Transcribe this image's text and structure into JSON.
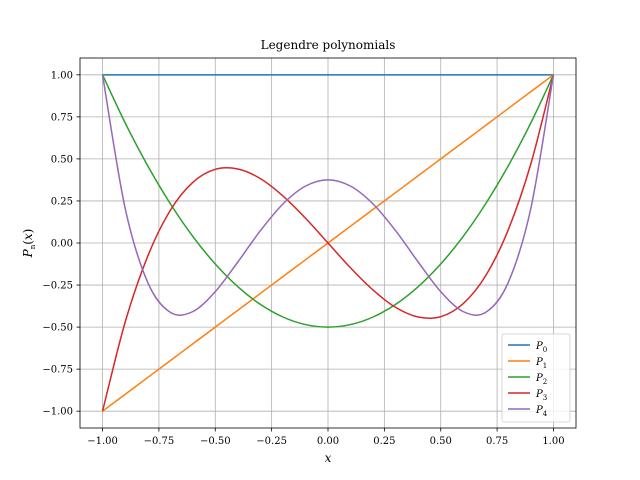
{
  "chart_data": {
    "type": "line",
    "title": "Legendre polynomials",
    "xlabel": "x",
    "ylabel": "P_n(x)",
    "xlim": [
      -1.1,
      1.1
    ],
    "ylim": [
      -1.1,
      1.1
    ],
    "xticks": [
      -1.0,
      -0.75,
      -0.5,
      -0.25,
      0.0,
      0.25,
      0.5,
      0.75,
      1.0
    ],
    "yticks": [
      -1.0,
      -0.75,
      -0.5,
      -0.25,
      0.0,
      0.25,
      0.5,
      0.75,
      1.0
    ],
    "xtick_labels": [
      "−1.00",
      "−0.75",
      "−0.50",
      "−0.25",
      "0.00",
      "0.25",
      "0.50",
      "0.75",
      "1.00"
    ],
    "ytick_labels": [
      "−1.00",
      "−0.75",
      "−0.50",
      "−0.25",
      "0.00",
      "0.25",
      "0.50",
      "0.75",
      "1.00"
    ],
    "grid": true,
    "legend_position": "lower-right",
    "x": [
      -1.0,
      -0.9,
      -0.8,
      -0.7,
      -0.6,
      -0.5,
      -0.4,
      -0.3,
      -0.2,
      -0.1,
      0.0,
      0.1,
      0.2,
      0.3,
      0.4,
      0.5,
      0.6,
      0.7,
      0.8,
      0.9,
      1.0
    ],
    "series": [
      {
        "name": "P",
        "sub": "0",
        "color": "#1f77b4",
        "values": [
          1,
          1,
          1,
          1,
          1,
          1,
          1,
          1,
          1,
          1,
          1,
          1,
          1,
          1,
          1,
          1,
          1,
          1,
          1,
          1,
          1
        ]
      },
      {
        "name": "P",
        "sub": "1",
        "color": "#ff7f0e",
        "values": [
          -1.0,
          -0.9,
          -0.8,
          -0.7,
          -0.6,
          -0.5,
          -0.4,
          -0.3,
          -0.2,
          -0.1,
          0.0,
          0.1,
          0.2,
          0.3,
          0.4,
          0.5,
          0.6,
          0.7,
          0.8,
          0.9,
          1.0
        ]
      },
      {
        "name": "P",
        "sub": "2",
        "color": "#2ca02c",
        "values": [
          1.0,
          0.715,
          0.46,
          0.235,
          0.04,
          -0.125,
          -0.26,
          -0.365,
          -0.44,
          -0.485,
          -0.5,
          -0.485,
          -0.44,
          -0.365,
          -0.26,
          -0.125,
          0.04,
          0.235,
          0.46,
          0.715,
          1.0
        ]
      },
      {
        "name": "P",
        "sub": "3",
        "color": "#d62728",
        "values": [
          -1.0,
          -0.472,
          -0.08,
          0.193,
          0.36,
          0.438,
          0.44,
          0.383,
          0.28,
          0.148,
          0.0,
          -0.148,
          -0.28,
          -0.383,
          -0.44,
          -0.438,
          -0.36,
          -0.193,
          0.08,
          0.472,
          1.0
        ]
      },
      {
        "name": "P",
        "sub": "4",
        "color": "#9467bd",
        "values": [
          1.0,
          0.208,
          -0.233,
          -0.412,
          -0.408,
          -0.289,
          -0.113,
          0.073,
          0.232,
          0.338,
          0.375,
          0.338,
          0.232,
          0.073,
          -0.113,
          -0.289,
          -0.408,
          -0.412,
          -0.233,
          0.208,
          1.0
        ]
      }
    ]
  }
}
